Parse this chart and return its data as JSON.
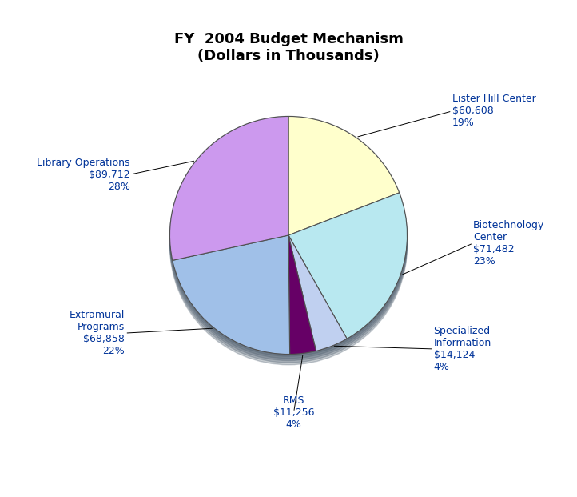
{
  "title": "FY  2004 Budget Mechanism\n(Dollars in Thousands)",
  "slices": [
    {
      "label": "Lister Hill Center",
      "value": 60608,
      "pct": 19,
      "color": "#FFFFCC",
      "dollar": "$60,608"
    },
    {
      "label": "Biotechnology\nCenter",
      "value": 71482,
      "pct": 23,
      "color": "#B8E8F0",
      "dollar": "$71,482"
    },
    {
      "label": "Specialized\nInformation",
      "value": 14124,
      "pct": 4,
      "color": "#C0D0F0",
      "dollar": "$14,124"
    },
    {
      "label": "RMS",
      "value": 11256,
      "pct": 4,
      "color": "#660066",
      "dollar": "$11,256"
    },
    {
      "label": "Extramural\nPrograms",
      "value": 68858,
      "pct": 22,
      "color": "#A0C0E8",
      "dollar": "$68,858"
    },
    {
      "label": "Library Operations",
      "value": 89712,
      "pct": 28,
      "color": "#CC99EE",
      "dollar": "$89,712"
    }
  ],
  "label_color": "#003399",
  "background_color": "#FFFFFF",
  "startangle": 90,
  "edge_color": "#505050",
  "shadow_color": "#506070",
  "title_fontsize": 13,
  "label_fontsize": 9
}
